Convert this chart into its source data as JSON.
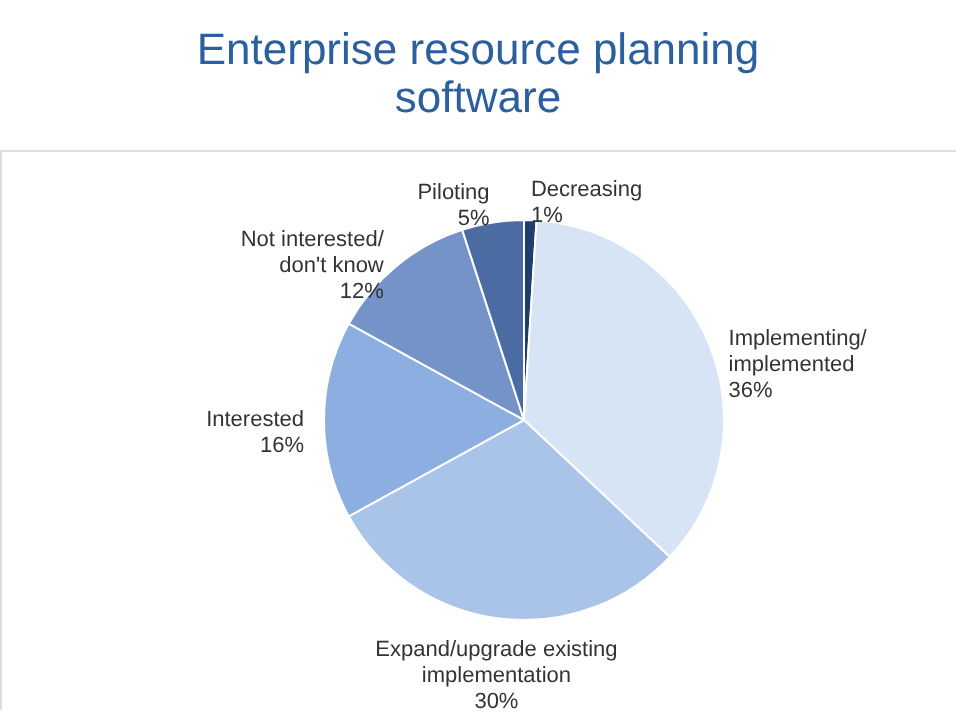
{
  "chart_data": {
    "type": "pie",
    "title": "Enterprise resource planning\nsoftware",
    "categories": [
      "Decreasing",
      "Implementing/\nimplemented",
      "Expand/upgrade existing\nimplementation",
      "Interested",
      "Not interested/\ndon't know",
      "Piloting"
    ],
    "values": [
      1,
      36,
      30,
      16,
      12,
      5
    ],
    "value_labels": [
      "1%",
      "36%",
      "30%",
      "16%",
      "12%",
      "5%"
    ],
    "colors": [
      "#1f3d6e",
      "#d6e4f5",
      "#a9c4e8",
      "#8caee0",
      "#7393c9",
      "#4a6ca3"
    ]
  }
}
